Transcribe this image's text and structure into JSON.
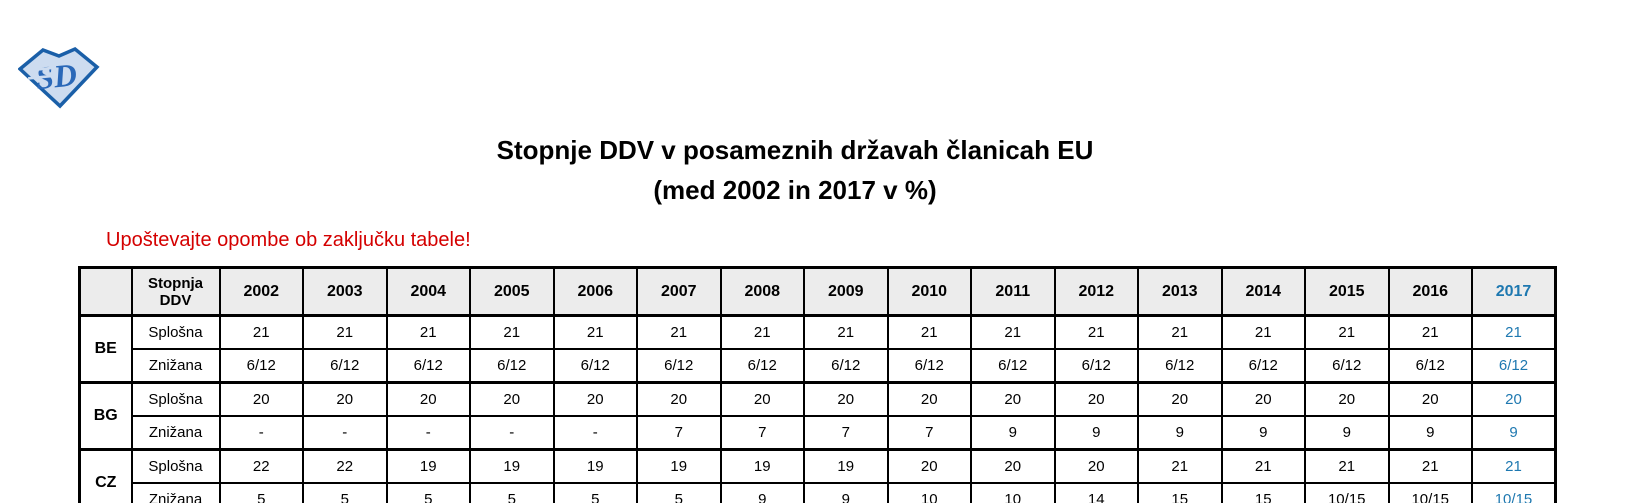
{
  "logo": {
    "name": "sd-diamond-logo",
    "letters": "SD",
    "outline_color": "#1a5fa8",
    "fill_color": "#cddcf0",
    "letter_color": "#2a68b8"
  },
  "title": {
    "line1": "Stopnje DDV v posameznih državah članicah EU",
    "line2": "(med 2002 in 2017 v %)"
  },
  "note": {
    "text": "Upoštevajte opombe ob zaključku tabele!"
  },
  "colors": {
    "accent_blue": "#1e78b0",
    "note_red": "#d40000",
    "header_bg": "#ececec",
    "border": "#000000"
  },
  "table": {
    "corner_label": "",
    "rate_header_line1": "Stopnja",
    "rate_header_line2": "DDV",
    "years": [
      "2002",
      "2003",
      "2004",
      "2005",
      "2006",
      "2007",
      "2008",
      "2009",
      "2010",
      "2011",
      "2012",
      "2013",
      "2014",
      "2015",
      "2016",
      "2017"
    ],
    "highlight_year": "2017",
    "rate_row_labels": [
      "Splošna",
      "Znižana"
    ],
    "countries": [
      {
        "code": "BE",
        "rows": [
          {
            "label": "Splošna",
            "values": [
              "21",
              "21",
              "21",
              "21",
              "21",
              "21",
              "21",
              "21",
              "21",
              "21",
              "21",
              "21",
              "21",
              "21",
              "21",
              "21"
            ]
          },
          {
            "label": "Znižana",
            "values": [
              "6/12",
              "6/12",
              "6/12",
              "6/12",
              "6/12",
              "6/12",
              "6/12",
              "6/12",
              "6/12",
              "6/12",
              "6/12",
              "6/12",
              "6/12",
              "6/12",
              "6/12",
              "6/12"
            ]
          }
        ]
      },
      {
        "code": "BG",
        "rows": [
          {
            "label": "Splošna",
            "values": [
              "20",
              "20",
              "20",
              "20",
              "20",
              "20",
              "20",
              "20",
              "20",
              "20",
              "20",
              "20",
              "20",
              "20",
              "20",
              "20"
            ]
          },
          {
            "label": "Znižana",
            "values": [
              "-",
              "-",
              "-",
              "-",
              "-",
              "7",
              "7",
              "7",
              "7",
              "9",
              "9",
              "9",
              "9",
              "9",
              "9",
              "9"
            ]
          }
        ]
      },
      {
        "code": "CZ",
        "rows": [
          {
            "label": "Splošna",
            "values": [
              "22",
              "22",
              "19",
              "19",
              "19",
              "19",
              "19",
              "19",
              "20",
              "20",
              "20",
              "21",
              "21",
              "21",
              "21",
              "21"
            ]
          },
          {
            "label": "Znižana",
            "values": [
              "5",
              "5",
              "5",
              "5",
              "5",
              "5",
              "9",
              "9",
              "10",
              "10",
              "14",
              "15",
              "15",
              "10/15",
              "10/15",
              "10/15"
            ]
          }
        ]
      }
    ]
  }
}
